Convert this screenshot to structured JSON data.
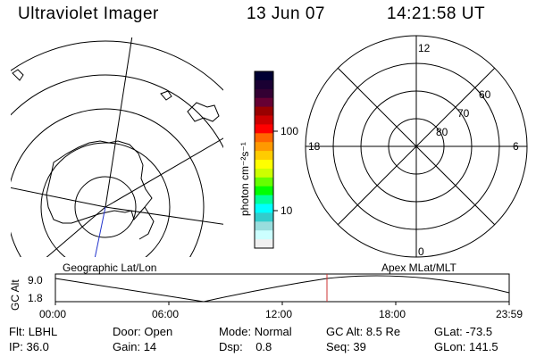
{
  "header": {
    "title": "Ultraviolet Imager",
    "date": "13 Jun 07",
    "time": "14:21:58 UT"
  },
  "colorbar": {
    "label": "photon cm⁻²s⁻¹",
    "ticks": [
      "100",
      "10"
    ],
    "colors": [
      "#000033",
      "#1a0033",
      "#330033",
      "#660033",
      "#990000",
      "#cc0000",
      "#ff0000",
      "#ff6600",
      "#ff9900",
      "#ffcc00",
      "#ffff00",
      "#ccff00",
      "#66ff00",
      "#00ff00",
      "#00ff99",
      "#00ffff",
      "#33cccc",
      "#99dddd",
      "#ccffff",
      "#f0f0f0"
    ]
  },
  "polar_plot": {
    "labels": {
      "top": "12",
      "left": "18",
      "right": "6",
      "bottom": "0",
      "ring60": "60",
      "ring70": "70",
      "ring80": "80"
    }
  },
  "map_labels": {
    "geographic": "Geographic Lat/Lon",
    "apex": "Apex MLat/MLT"
  },
  "altitude_plot": {
    "ylabel": "GC Alt",
    "yticks": [
      "9.0",
      "1.8"
    ],
    "xticks": [
      "00:00",
      "06:00",
      "12:00",
      "18:00",
      "23:59"
    ],
    "marker_color": "#cc3333"
  },
  "status": {
    "row1": [
      {
        "label": "Flt:",
        "value": "LBHL"
      },
      {
        "label": "Door:",
        "value": "Open"
      },
      {
        "label": "Mode:",
        "value": "Normal"
      },
      {
        "label": "GC Alt:",
        "value": "8.5 Re"
      },
      {
        "label": "GLat:",
        "value": "-73.5"
      }
    ],
    "row2": [
      {
        "label": "IP:",
        "value": "36.0"
      },
      {
        "label": "Gain:",
        "value": "14"
      },
      {
        "label": "Dsp:",
        "value": "0.8"
      },
      {
        "label": "Seq:",
        "value": "39"
      },
      {
        "label": "GLon:",
        "value": "141.5"
      }
    ]
  }
}
